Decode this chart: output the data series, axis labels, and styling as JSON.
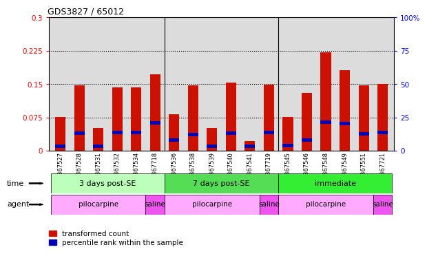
{
  "title": "GDS3827 / 65012",
  "samples": [
    "GSM367527",
    "GSM367528",
    "GSM367531",
    "GSM367532",
    "GSM367534",
    "GSM367718",
    "GSM367536",
    "GSM367538",
    "GSM367539",
    "GSM367540",
    "GSM367541",
    "GSM367719",
    "GSM367545",
    "GSM367546",
    "GSM367548",
    "GSM367549",
    "GSM367551",
    "GSM367721"
  ],
  "red_values": [
    0.077,
    0.148,
    0.052,
    0.143,
    0.143,
    0.172,
    0.083,
    0.147,
    0.052,
    0.154,
    0.022,
    0.149,
    0.077,
    0.13,
    0.222,
    0.182,
    0.147,
    0.15
  ],
  "blue_values": [
    0.01,
    0.04,
    0.01,
    0.042,
    0.042,
    0.063,
    0.025,
    0.037,
    0.01,
    0.04,
    0.01,
    0.042,
    0.012,
    0.025,
    0.065,
    0.062,
    0.038,
    0.042
  ],
  "ylim_left": [
    0,
    0.3
  ],
  "ylim_right": [
    0,
    100
  ],
  "yticks_left": [
    0,
    0.075,
    0.15,
    0.225,
    0.3
  ],
  "yticks_right": [
    0,
    25,
    50,
    75,
    100
  ],
  "ytick_labels_left": [
    "0",
    "0.075",
    "0.15",
    "0.225",
    "0.3"
  ],
  "ytick_labels_right": [
    "0",
    "25",
    "50",
    "75",
    "100%"
  ],
  "hlines": [
    0.075,
    0.15,
    0.225
  ],
  "time_groups": [
    {
      "label": "3 days post-SE",
      "start": 0,
      "end": 5
    },
    {
      "label": "7 days post-SE",
      "start": 6,
      "end": 11
    },
    {
      "label": "immediate",
      "start": 12,
      "end": 17
    }
  ],
  "time_colors": [
    "#BBFFBB",
    "#55DD55",
    "#33EE33"
  ],
  "agent_groups": [
    {
      "label": "pilocarpine",
      "start": 0,
      "end": 4
    },
    {
      "label": "saline",
      "start": 5,
      "end": 5
    },
    {
      "label": "pilocarpine",
      "start": 6,
      "end": 10
    },
    {
      "label": "saline",
      "start": 11,
      "end": 11
    },
    {
      "label": "pilocarpine",
      "start": 12,
      "end": 16
    },
    {
      "label": "saline",
      "start": 17,
      "end": 17
    }
  ],
  "agent_colors": {
    "pilocarpine": "#FFAAFF",
    "saline": "#EE55EE"
  },
  "bar_color": "#CC1100",
  "dot_color": "#0000BB",
  "bar_width": 0.55,
  "time_label": "time",
  "agent_label": "agent",
  "legend_items": [
    {
      "label": "transformed count",
      "color": "#CC1100"
    },
    {
      "label": "percentile rank within the sample",
      "color": "#0000BB"
    }
  ],
  "plot_bg": "#DCDCDC",
  "fig_bg": "#FFFFFF"
}
